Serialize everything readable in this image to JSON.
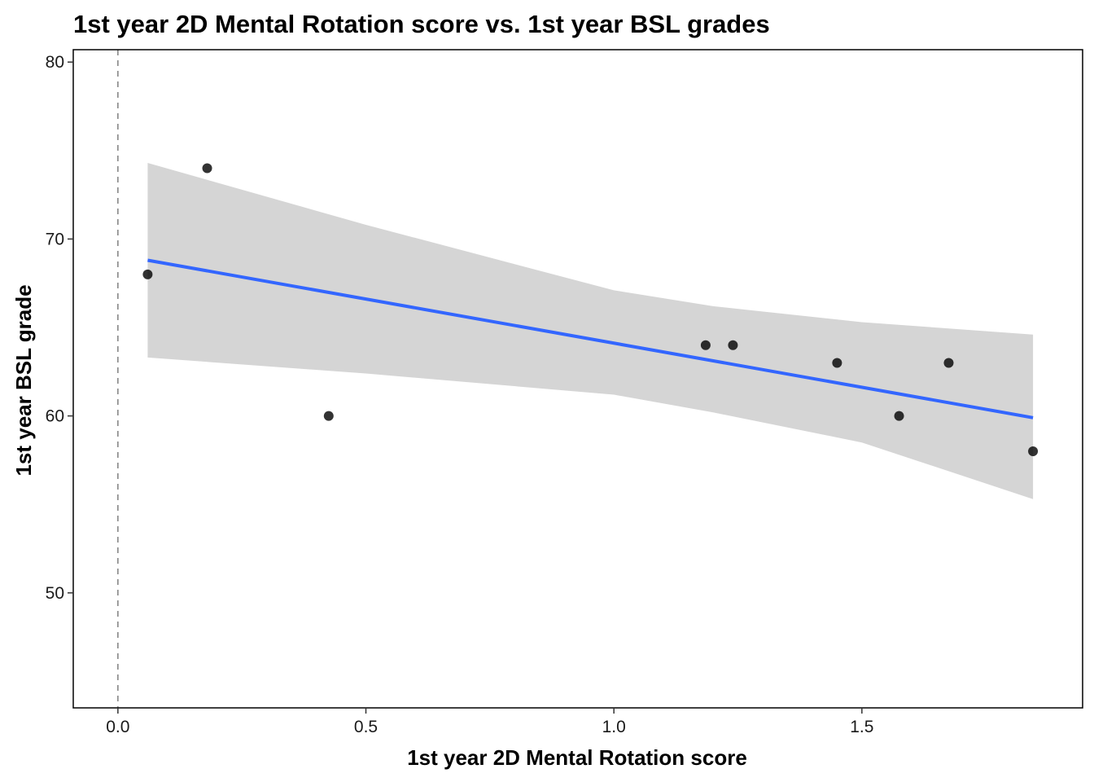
{
  "chart_data": {
    "type": "scatter",
    "title": "1st year 2D Mental Rotation score vs. 1st year BSL grades",
    "xlabel": "1st year 2D Mental Rotation score",
    "ylabel": "1st year BSL grade",
    "xlim": [
      -0.09,
      1.945
    ],
    "ylim": [
      43.5,
      80.7
    ],
    "x_ticks": [
      0.0,
      0.5,
      1.0,
      1.5
    ],
    "x_tick_labels": [
      "0.0",
      "0.5",
      "1.0",
      "1.5"
    ],
    "y_ticks": [
      50,
      60,
      70,
      80
    ],
    "y_tick_labels": [
      "50",
      "60",
      "70",
      "80"
    ],
    "grid": false,
    "vline": {
      "x": 0,
      "style": "dashed",
      "color": "#808080"
    },
    "points": [
      {
        "x": 0.06,
        "y": 68
      },
      {
        "x": 0.18,
        "y": 74
      },
      {
        "x": 0.425,
        "y": 60
      },
      {
        "x": 1.185,
        "y": 64
      },
      {
        "x": 1.24,
        "y": 64
      },
      {
        "x": 1.45,
        "y": 63
      },
      {
        "x": 1.575,
        "y": 60
      },
      {
        "x": 1.675,
        "y": 63
      },
      {
        "x": 1.845,
        "y": 58
      }
    ],
    "trend": {
      "type": "linear",
      "color": "#3366FF",
      "start": {
        "x": 0.06,
        "y": 68.8
      },
      "end": {
        "x": 1.845,
        "y": 59.9
      }
    },
    "confidence_band": {
      "color": "#d5d5d5",
      "x": [
        0.06,
        0.5,
        1.0,
        1.2,
        1.5,
        1.845
      ],
      "upper": [
        74.3,
        70.8,
        67.1,
        66.2,
        65.3,
        64.6
      ],
      "lower": [
        63.3,
        62.4,
        61.2,
        60.2,
        58.5,
        55.3
      ]
    },
    "colors": {
      "points": "#000000",
      "trend": "#3366FF",
      "band": "#d5d5d5"
    }
  }
}
